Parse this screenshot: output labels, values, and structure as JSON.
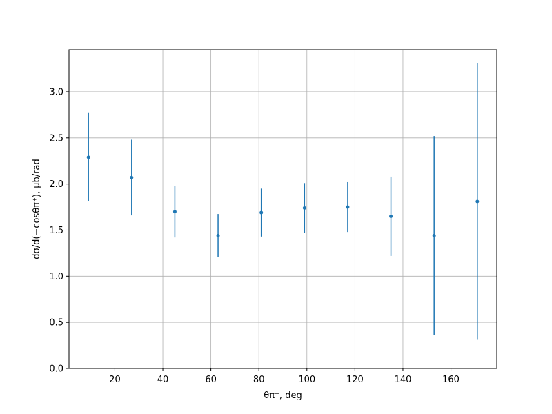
{
  "chart_data": {
    "type": "errorbar",
    "x_label": "θπ⁺, deg",
    "y_label": "dσ/d(−cosθπ⁺), μb/rad",
    "x": [
      9,
      27,
      45,
      63,
      81,
      99,
      117,
      135,
      153,
      171
    ],
    "series": [
      {
        "color": "#1f77b4",
        "values": [
          2.29,
          2.07,
          1.7,
          1.44,
          1.69,
          1.74,
          1.75,
          1.65,
          1.44,
          1.81
        ],
        "errors": [
          0.48,
          0.41,
          0.28,
          0.235,
          0.26,
          0.27,
          0.27,
          0.43,
          1.08,
          1.5
        ]
      }
    ],
    "xlim": [
      0.9,
      179.1
    ],
    "ylim": [
      0,
      3.456
    ],
    "xticks": [
      20,
      40,
      60,
      80,
      100,
      120,
      140,
      160
    ],
    "yticks": [
      {
        "value": 0,
        "label": "0.0"
      },
      0.5,
      {
        "value": 1,
        "label": "1.0"
      },
      1.5,
      {
        "value": 2,
        "label": "2.0"
      },
      2.5,
      {
        "value": 3,
        "label": "3.0"
      }
    ],
    "grid": true
  }
}
